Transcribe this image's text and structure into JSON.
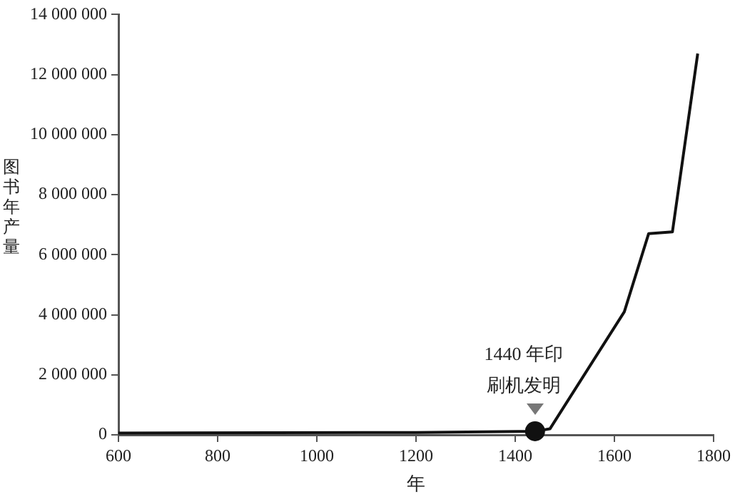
{
  "chart_data": {
    "type": "line",
    "xlabel": "年",
    "ylabel": "图书年产量",
    "x": [
      600,
      1200,
      1440,
      1470,
      1620,
      1669,
      1717,
      1768
    ],
    "series": [
      {
        "color": "#111111",
        "values": [
          60000,
          80000,
          120000,
          200000,
          4100000,
          6700000,
          6760000,
          12700000
        ]
      }
    ],
    "xlim": [
      600,
      1800
    ],
    "xticks": [
      600,
      800,
      1000,
      1200,
      1400,
      1600,
      1800
    ],
    "ylim": [
      0,
      14000000
    ],
    "yticks": [
      0,
      {
        "value": 2000000,
        "label": "2 000 000"
      },
      {
        "value": 4000000,
        "label": "4 000 000"
      },
      {
        "value": 6000000,
        "label": "6 000 000"
      },
      {
        "value": 8000000,
        "label": "8 000 000"
      },
      {
        "value": 10000000,
        "label": "10 000 000"
      },
      {
        "value": 12000000,
        "label": "12 000 000"
      },
      {
        "value": 14000000,
        "label": "14 000 000"
      }
    ],
    "annotations": [
      {
        "text": "1440 年印刷机发明",
        "x": 1440,
        "y": 120000
      }
    ],
    "grid": false,
    "legend": false,
    "marker": "none",
    "line_style": "solid"
  }
}
